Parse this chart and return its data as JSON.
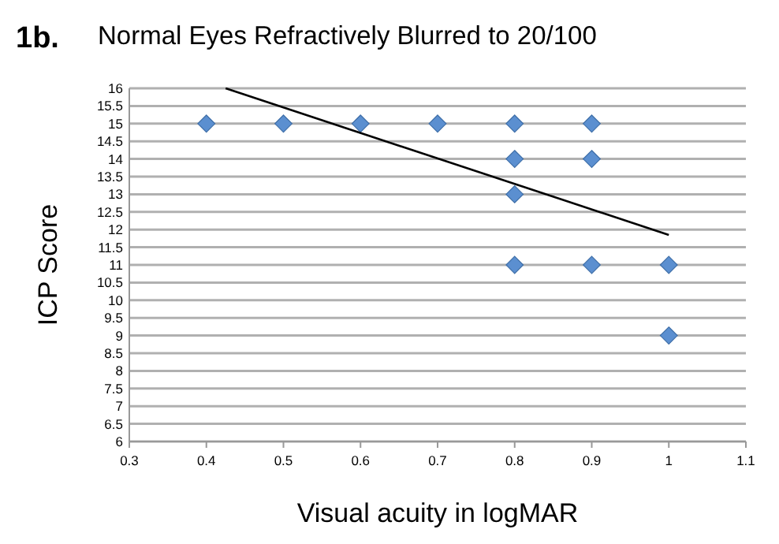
{
  "chart_data": {
    "type": "scatter",
    "title": "Normal Eyes Refractively Blurred to 20/100",
    "annotations": [
      "1b."
    ],
    "xlabel": "Visual acuity in logMAR",
    "ylabel": "ICP Score",
    "xlim": [
      0.3,
      1.1
    ],
    "xticks": [
      0.3,
      0.4,
      0.5,
      0.6,
      0.7,
      0.8,
      0.9,
      1,
      1.1
    ],
    "ylim": [
      6,
      16
    ],
    "yticks": [
      6,
      6.5,
      7,
      7.5,
      8,
      8.5,
      9,
      9.5,
      10,
      10.5,
      11,
      11.5,
      12,
      12.5,
      13,
      13.5,
      14,
      14.5,
      15,
      15.5,
      16
    ],
    "grid": "y",
    "marker": "diamond",
    "series": [
      {
        "color": "#5b8fd0",
        "x": [
          0.4,
          0.5,
          0.6,
          0.7,
          0.8,
          0.9,
          0.8,
          0.9,
          0.8,
          0.8,
          0.9,
          1,
          1
        ],
        "values": [
          15,
          15,
          15,
          15,
          15,
          15,
          14,
          14,
          13,
          11,
          11,
          11,
          9
        ]
      },
      {
        "type": "line",
        "color": "#000000",
        "marker": "none",
        "x": [
          0.425,
          1
        ],
        "values": [
          16,
          11.85
        ]
      }
    ]
  }
}
